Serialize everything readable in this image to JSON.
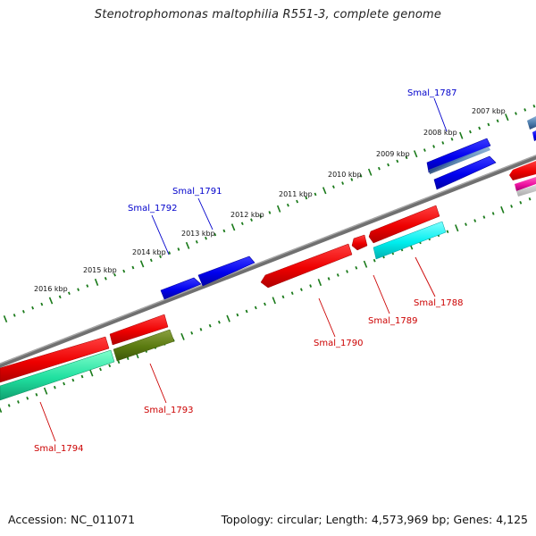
{
  "title": "Stenotrophomonas maltophilia R551-3, complete genome",
  "footer": {
    "accession": "Accession: NC_011071",
    "summary": "Topology: circular; Length: 4,573,969 bp; Genes: 4,125"
  },
  "ticks": [
    "2016 kbp",
    "2015 kbp",
    "2014 kbp",
    "2013 kbp",
    "2012 kbp",
    "2011 kbp",
    "2010 kbp",
    "2009 kbp",
    "2008 kbp",
    "2007 kbp"
  ],
  "gene_labels": {
    "smal_1787": "Smal_1787",
    "smal_1788": "Smal_1788",
    "smal_1789": "Smal_1789",
    "smal_1790": "Smal_1790",
    "smal_1791": "Smal_1791",
    "smal_1792": "Smal_1792",
    "smal_1793": "Smal_1793",
    "smal_1794": "Smal_1794"
  },
  "colors": {
    "forward_label": "#0000cc",
    "reverse_label": "#cc0000",
    "backbone": "#808080",
    "ticks": "#1a7a1a",
    "blue": "#0000ee",
    "red": "#ee0000",
    "cyan": "#00eeee",
    "olive": "#5a7a10",
    "teal": "#20e090",
    "steel": "#4a7aaa",
    "magenta": "#ee10a0"
  }
}
